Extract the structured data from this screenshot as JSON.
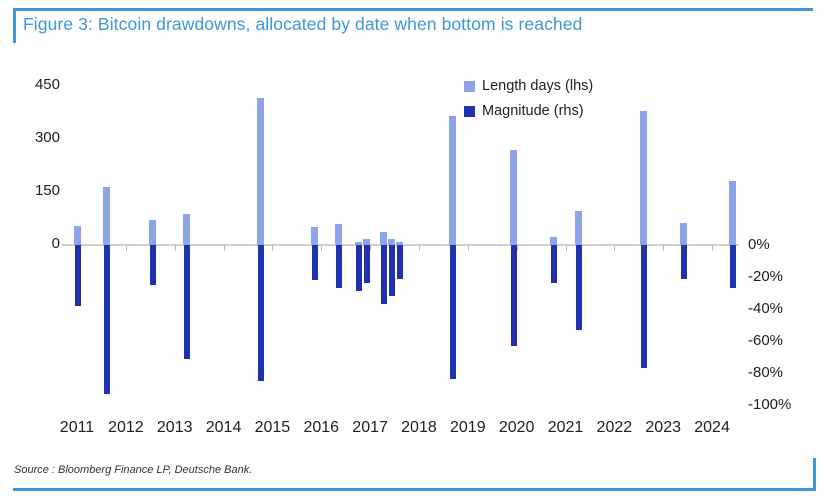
{
  "figure": {
    "title": "Figure 3: Bitcoin drawdowns, allocated by date when bottom is reached",
    "source": "Source : Bloomberg Finance LP, Deutsche Bank."
  },
  "colors": {
    "accent_blue": "#3f96d8",
    "length_bar": "#8fa4e8",
    "magnitude_bar": "#2130ae",
    "zero_line": "#d0d0d0",
    "axis_text": "#1f1f1f"
  },
  "chart_data": {
    "type": "bar",
    "title": "Figure 3: Bitcoin drawdowns, allocated by date when bottom is reached",
    "legend": [
      {
        "label": "Length days (lhs)",
        "series": "length_days"
      },
      {
        "label": "Magnitude (rhs)",
        "series": "magnitude_pct"
      }
    ],
    "legend_position": "top-right-inside",
    "grid": false,
    "x_axis": {
      "years": [
        "2011",
        "2012",
        "2013",
        "2014",
        "2015",
        "2016",
        "2017",
        "2018",
        "2019",
        "2020",
        "2021",
        "2022",
        "2023",
        "2024"
      ]
    },
    "left_axis": {
      "title": "Length days (lhs)",
      "tick_values": [
        0,
        150,
        300,
        450
      ],
      "range": [
        0,
        450
      ]
    },
    "right_axis": {
      "title": "Magnitude (rhs)",
      "tick_labels": [
        "0%",
        "-20%",
        "-40%",
        "-60%",
        "-80%",
        "-100%"
      ],
      "tick_values": [
        0,
        -20,
        -40,
        -60,
        -80,
        -100
      ],
      "range": [
        -100,
        0
      ]
    },
    "bars": [
      {
        "pos": 2011.02,
        "length_days": 55,
        "magnitude_pct": -38
      },
      {
        "pos": 2011.6,
        "length_days": 163,
        "magnitude_pct": -93
      },
      {
        "pos": 2012.54,
        "length_days": 70,
        "magnitude_pct": -25
      },
      {
        "pos": 2013.25,
        "length_days": 88,
        "magnitude_pct": -71
      },
      {
        "pos": 2014.76,
        "length_days": 415,
        "magnitude_pct": -85
      },
      {
        "pos": 2015.87,
        "length_days": 50,
        "magnitude_pct": -22
      },
      {
        "pos": 2016.35,
        "length_days": 60,
        "magnitude_pct": -27
      },
      {
        "pos": 2016.76,
        "length_days": 8,
        "magnitude_pct": -29
      },
      {
        "pos": 2016.93,
        "length_days": 17,
        "magnitude_pct": -24
      },
      {
        "pos": 2017.27,
        "length_days": 37,
        "magnitude_pct": -37
      },
      {
        "pos": 2017.44,
        "length_days": 17,
        "magnitude_pct": -32
      },
      {
        "pos": 2017.6,
        "length_days": 8,
        "magnitude_pct": -21
      },
      {
        "pos": 2018.68,
        "length_days": 365,
        "magnitude_pct": -84
      },
      {
        "pos": 2019.94,
        "length_days": 268,
        "magnitude_pct": -63
      },
      {
        "pos": 2020.76,
        "length_days": 22,
        "magnitude_pct": -24
      },
      {
        "pos": 2021.27,
        "length_days": 96,
        "magnitude_pct": -53
      },
      {
        "pos": 2022.6,
        "length_days": 380,
        "magnitude_pct": -77
      },
      {
        "pos": 2023.42,
        "length_days": 62,
        "magnitude_pct": -21
      },
      {
        "pos": 2024.42,
        "length_days": 180,
        "magnitude_pct": -27
      }
    ]
  }
}
